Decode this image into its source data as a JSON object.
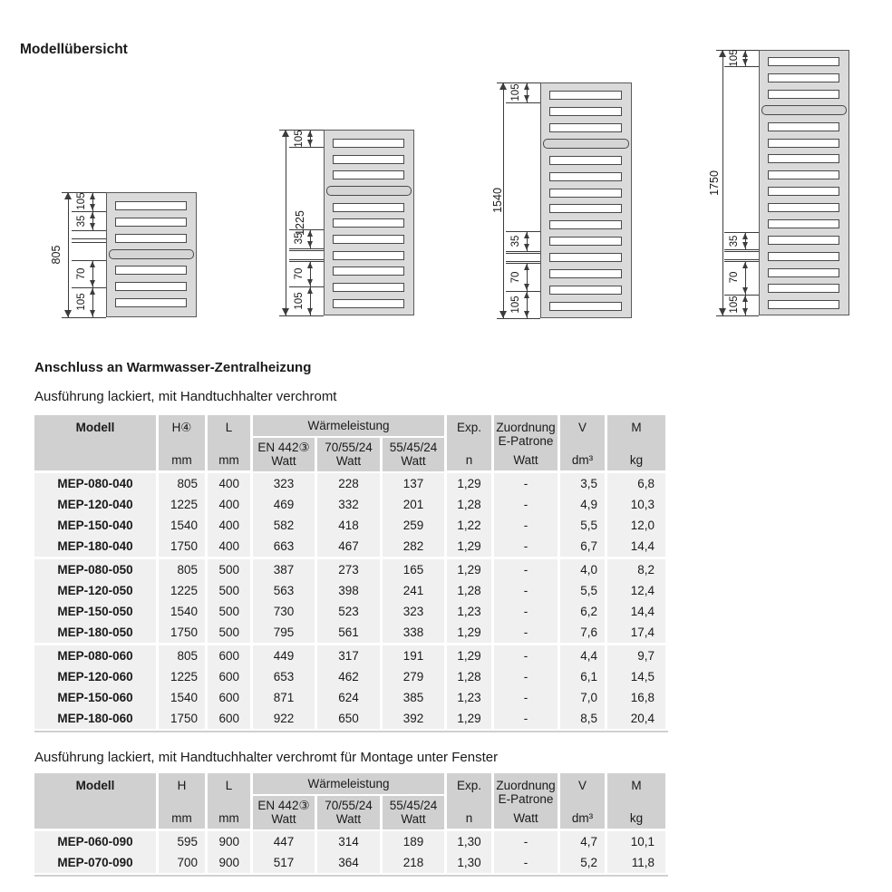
{
  "page": {
    "title": "Modellübersicht"
  },
  "diagrams": [
    {
      "name": "radiator-805",
      "height_label": "805",
      "slot_count": 7,
      "towel_slot_index": 3,
      "dim_labels": [
        "105",
        "35",
        "70",
        "105"
      ]
    },
    {
      "name": "radiator-1225",
      "height_label": "1225",
      "slot_count": 11,
      "towel_slot_index": 3,
      "dim_labels": [
        "105",
        "35",
        "70",
        "105"
      ]
    },
    {
      "name": "radiator-1540",
      "height_label": "1540",
      "slot_count": 14,
      "towel_slot_index": 3,
      "dim_labels": [
        "105",
        "35",
        "70",
        "105"
      ]
    },
    {
      "name": "radiator-1750",
      "height_label": "1750",
      "slot_count": 16,
      "towel_slot_index": 3,
      "dim_labels": [
        "105",
        "35",
        "70",
        "105"
      ]
    }
  ],
  "section_heating": {
    "heading": "Anschluss an Warmwasser-Zentralheizung",
    "subheading": "Ausführung lackiert, mit Handtuchhalter verchromt",
    "table": {
      "header": {
        "modell": "Modell",
        "h": "H④",
        "l": "L",
        "waermeleistung": "Wärmeleistung",
        "en442": "EN 442③",
        "t705524": "70/55/24",
        "t554524": "55/45/24",
        "exp": "Exp.",
        "zuordnung": "Zuordnung",
        "epatrone": "E-Patrone",
        "v": "V",
        "m": "M",
        "unit_mm": "mm",
        "unit_watt": "Watt",
        "unit_n": "n",
        "unit_dm3": "dm³",
        "unit_kg": "kg"
      },
      "group_size": 4,
      "rows": [
        [
          "MEP-080-040",
          "805",
          "400",
          "323",
          "228",
          "137",
          "1,29",
          "-",
          "3,5",
          "6,8"
        ],
        [
          "MEP-120-040",
          "1225",
          "400",
          "469",
          "332",
          "201",
          "1,28",
          "-",
          "4,9",
          "10,3"
        ],
        [
          "MEP-150-040",
          "1540",
          "400",
          "582",
          "418",
          "259",
          "1,22",
          "-",
          "5,5",
          "12,0"
        ],
        [
          "MEP-180-040",
          "1750",
          "400",
          "663",
          "467",
          "282",
          "1,29",
          "-",
          "6,7",
          "14,4"
        ],
        [
          "MEP-080-050",
          "805",
          "500",
          "387",
          "273",
          "165",
          "1,29",
          "-",
          "4,0",
          "8,2"
        ],
        [
          "MEP-120-050",
          "1225",
          "500",
          "563",
          "398",
          "241",
          "1,28",
          "-",
          "5,5",
          "12,4"
        ],
        [
          "MEP-150-050",
          "1540",
          "500",
          "730",
          "523",
          "323",
          "1,23",
          "-",
          "6,2",
          "14,4"
        ],
        [
          "MEP-180-050",
          "1750",
          "500",
          "795",
          "561",
          "338",
          "1,29",
          "-",
          "7,6",
          "17,4"
        ],
        [
          "MEP-080-060",
          "805",
          "600",
          "449",
          "317",
          "191",
          "1,29",
          "-",
          "4,4",
          "9,7"
        ],
        [
          "MEP-120-060",
          "1225",
          "600",
          "653",
          "462",
          "279",
          "1,28",
          "-",
          "6,1",
          "14,5"
        ],
        [
          "MEP-150-060",
          "1540",
          "600",
          "871",
          "624",
          "385",
          "1,23",
          "-",
          "7,0",
          "16,8"
        ],
        [
          "MEP-180-060",
          "1750",
          "600",
          "922",
          "650",
          "392",
          "1,29",
          "-",
          "8,5",
          "20,4"
        ]
      ]
    }
  },
  "section_window": {
    "subheading": "Ausführung lackiert, mit Handtuchhalter verchromt für Montage unter Fenster",
    "table": {
      "header": {
        "modell": "Modell",
        "h": "H",
        "l": "L",
        "waermeleistung": "Wärmeleistung",
        "en442": "EN 442③",
        "t705524": "70/55/24",
        "t554524": "55/45/24",
        "exp": "Exp.",
        "zuordnung": "Zuordnung",
        "epatrone": "E-Patrone",
        "v": "V",
        "m": "M",
        "unit_mm": "mm",
        "unit_watt": "Watt",
        "unit_n": "n",
        "unit_dm3": "dm³",
        "unit_kg": "kg"
      },
      "group_size": 4,
      "rows": [
        [
          "MEP-060-090",
          "595",
          "900",
          "447",
          "314",
          "189",
          "1,30",
          "-",
          "4,7",
          "10,1"
        ],
        [
          "MEP-070-090",
          "700",
          "900",
          "517",
          "364",
          "218",
          "1,30",
          "-",
          "5,2",
          "11,8"
        ]
      ]
    }
  },
  "colors": {
    "header_bg": "#d0d0d0",
    "row_bg": "#f0f0f0",
    "radiator_fill": "#dadada",
    "line": "#3c3c3c",
    "text": "#1a1a1a"
  }
}
